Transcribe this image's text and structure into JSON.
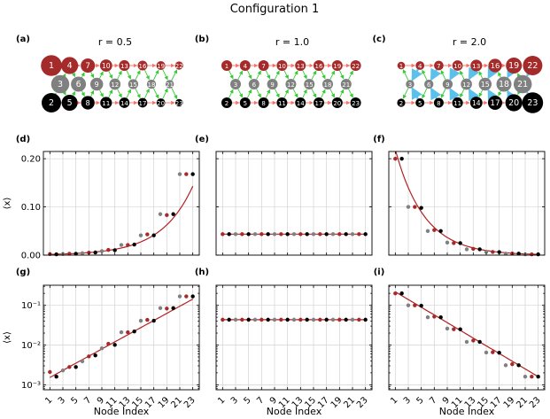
{
  "figure": {
    "title": "Configuration 1",
    "colors": {
      "red": "#a52a2a",
      "gray": "#808080",
      "black": "#000000",
      "fit": "#b22222",
      "edge_red": "#ff6f61",
      "edge_green": "#32cd32",
      "edge_blue": "#5bc0eb"
    }
  },
  "networks": [
    {
      "panel": "(a)",
      "title": "r = 0.5",
      "r": 0.5,
      "top": [
        1,
        4,
        7,
        10,
        13,
        16,
        19,
        22
      ],
      "mid": [
        3,
        6,
        9,
        12,
        15,
        18,
        21
      ],
      "bottom": [
        2,
        5,
        8,
        11,
        14,
        17,
        20,
        23
      ]
    },
    {
      "panel": "(b)",
      "title": "r = 1.0",
      "r": 1.0,
      "top": [
        1,
        4,
        7,
        10,
        13,
        16,
        19,
        22
      ],
      "mid": [
        3,
        6,
        9,
        12,
        15,
        18,
        21
      ],
      "bottom": [
        2,
        5,
        8,
        11,
        14,
        17,
        20,
        23
      ]
    },
    {
      "panel": "(c)",
      "title": "r = 2.0",
      "r": 2.0,
      "top": [
        1,
        4,
        7,
        10,
        13,
        16,
        19,
        22
      ],
      "mid": [
        3,
        6,
        9,
        12,
        15,
        18,
        21
      ],
      "bottom": [
        2,
        5,
        8,
        11,
        14,
        17,
        20,
        23
      ]
    }
  ],
  "chart_data": [
    {
      "panel": "(d)",
      "type": "scatter",
      "scale": "linear",
      "ylabel": "⟨x⟩",
      "xlabel": "",
      "ylim": [
        0,
        0.215
      ],
      "yticks": [
        0.0,
        0.1,
        0.2
      ],
      "ytick_labels": [
        "0.00",
        "0.10",
        "0.20"
      ],
      "xlim": [
        0,
        24
      ],
      "xticks": [
        1,
        3,
        5,
        7,
        9,
        11,
        13,
        15,
        17,
        19,
        21,
        23
      ],
      "show_xtick_labels": false,
      "x": [
        1,
        2,
        3,
        4,
        5,
        6,
        7,
        8,
        9,
        10,
        11,
        12,
        13,
        14,
        15,
        16,
        17,
        18,
        19,
        20,
        21,
        22,
        23
      ],
      "y": [
        0.0021,
        0.0016,
        0.0023,
        0.0028,
        0.0028,
        0.0039,
        0.0052,
        0.0055,
        0.0083,
        0.0108,
        0.0101,
        0.021,
        0.021,
        0.022,
        0.041,
        0.043,
        0.041,
        0.085,
        0.083,
        0.085,
        0.168,
        0.168,
        0.168
      ],
      "fit": {
        "kind": "exp",
        "a": 0.00153,
        "b": 0.2063
      }
    },
    {
      "panel": "(e)",
      "type": "scatter",
      "scale": "linear",
      "ylabel": "",
      "xlabel": "",
      "ylim": [
        0,
        0.215
      ],
      "yticks": [
        0.0,
        0.1,
        0.2
      ],
      "ytick_labels": [
        "",
        "",
        ""
      ],
      "xlim": [
        0,
        24
      ],
      "xticks": [
        1,
        3,
        5,
        7,
        9,
        11,
        13,
        15,
        17,
        19,
        21,
        23
      ],
      "show_xtick_labels": false,
      "x": [
        1,
        2,
        3,
        4,
        5,
        6,
        7,
        8,
        9,
        10,
        11,
        12,
        13,
        14,
        15,
        16,
        17,
        18,
        19,
        20,
        21,
        22,
        23
      ],
      "y": [
        0.0435,
        0.0435,
        0.0435,
        0.0435,
        0.0435,
        0.0435,
        0.0435,
        0.0435,
        0.0435,
        0.0435,
        0.0435,
        0.0435,
        0.0435,
        0.0435,
        0.0435,
        0.0435,
        0.0435,
        0.0435,
        0.0435,
        0.0435,
        0.0435,
        0.0435,
        0.0435
      ],
      "fit": {
        "kind": "exp",
        "a": 0.0435,
        "b": 0
      }
    },
    {
      "panel": "(f)",
      "type": "scatter",
      "scale": "linear",
      "ylabel": "",
      "xlabel": "",
      "ylim": [
        0,
        0.215
      ],
      "yticks": [
        0.0,
        0.1,
        0.2
      ],
      "ytick_labels": [
        "",
        "",
        ""
      ],
      "xlim": [
        0,
        24
      ],
      "xticks": [
        1,
        3,
        5,
        7,
        9,
        11,
        13,
        15,
        17,
        19,
        21,
        23
      ],
      "show_xtick_labels": false,
      "x": [
        1,
        2,
        3,
        4,
        5,
        6,
        7,
        8,
        9,
        10,
        11,
        12,
        13,
        14,
        15,
        16,
        17,
        18,
        19,
        20,
        21,
        22,
        23
      ],
      "y": [
        0.2,
        0.2,
        0.1,
        0.1,
        0.098,
        0.05,
        0.052,
        0.05,
        0.026,
        0.025,
        0.025,
        0.012,
        0.013,
        0.012,
        0.0065,
        0.0066,
        0.0064,
        0.0031,
        0.0033,
        0.0031,
        0.0016,
        0.0016,
        0.0016
      ],
      "fit": {
        "kind": "exp",
        "a": 0.2188,
        "b": -0.2234
      }
    },
    {
      "panel": "(g)",
      "type": "scatter",
      "scale": "log",
      "ylabel": "⟨x⟩",
      "xlabel": "Node Index",
      "ylim": [
        0.00075,
        0.32
      ],
      "yticks": [
        0.001,
        0.01,
        0.1
      ],
      "ytick_labels": [
        "10⁻³",
        "10⁻²",
        "10⁻¹"
      ],
      "xlim": [
        0,
        24
      ],
      "xticks": [
        1,
        3,
        5,
        7,
        9,
        11,
        13,
        15,
        17,
        19,
        21,
        23
      ],
      "show_xtick_labels": true,
      "x": [
        1,
        2,
        3,
        4,
        5,
        6,
        7,
        8,
        9,
        10,
        11,
        12,
        13,
        14,
        15,
        16,
        17,
        18,
        19,
        20,
        21,
        22,
        23
      ],
      "y": [
        0.0021,
        0.0016,
        0.0023,
        0.0028,
        0.0028,
        0.0039,
        0.0052,
        0.0055,
        0.0083,
        0.0108,
        0.0101,
        0.021,
        0.021,
        0.022,
        0.041,
        0.043,
        0.041,
        0.085,
        0.083,
        0.085,
        0.168,
        0.168,
        0.168
      ],
      "fit": {
        "kind": "exp",
        "a": 0.00153,
        "b": 0.2063
      }
    },
    {
      "panel": "(h)",
      "type": "scatter",
      "scale": "log",
      "ylabel": "",
      "xlabel": "Node Index",
      "ylim": [
        0.00075,
        0.32
      ],
      "yticks": [
        0.001,
        0.01,
        0.1
      ],
      "ytick_labels": [
        "",
        "",
        ""
      ],
      "xlim": [
        0,
        24
      ],
      "xticks": [
        1,
        3,
        5,
        7,
        9,
        11,
        13,
        15,
        17,
        19,
        21,
        23
      ],
      "show_xtick_labels": true,
      "x": [
        1,
        2,
        3,
        4,
        5,
        6,
        7,
        8,
        9,
        10,
        11,
        12,
        13,
        14,
        15,
        16,
        17,
        18,
        19,
        20,
        21,
        22,
        23
      ],
      "y": [
        0.0435,
        0.0435,
        0.0435,
        0.0435,
        0.0435,
        0.0435,
        0.0435,
        0.0435,
        0.0435,
        0.0435,
        0.0435,
        0.0435,
        0.0435,
        0.0435,
        0.0435,
        0.0435,
        0.0435,
        0.0435,
        0.0435,
        0.0435,
        0.0435,
        0.0435,
        0.0435
      ],
      "fit": {
        "kind": "exp",
        "a": 0.0435,
        "b": 0
      }
    },
    {
      "panel": "(i)",
      "type": "scatter",
      "scale": "log",
      "ylabel": "",
      "xlabel": "Node Index",
      "ylim": [
        0.00075,
        0.32
      ],
      "yticks": [
        0.001,
        0.01,
        0.1
      ],
      "ytick_labels": [
        "",
        "",
        ""
      ],
      "xlim": [
        0,
        24
      ],
      "xticks": [
        1,
        3,
        5,
        7,
        9,
        11,
        13,
        15,
        17,
        19,
        21,
        23
      ],
      "show_xtick_labels": true,
      "x": [
        1,
        2,
        3,
        4,
        5,
        6,
        7,
        8,
        9,
        10,
        11,
        12,
        13,
        14,
        15,
        16,
        17,
        18,
        19,
        20,
        21,
        22,
        23
      ],
      "y": [
        0.2,
        0.2,
        0.1,
        0.1,
        0.098,
        0.05,
        0.052,
        0.05,
        0.026,
        0.025,
        0.025,
        0.012,
        0.013,
        0.012,
        0.0065,
        0.0066,
        0.0064,
        0.0031,
        0.0033,
        0.0031,
        0.0016,
        0.0016,
        0.0016
      ],
      "fit": {
        "kind": "exp",
        "a": 0.2188,
        "b": -0.2234
      }
    }
  ]
}
